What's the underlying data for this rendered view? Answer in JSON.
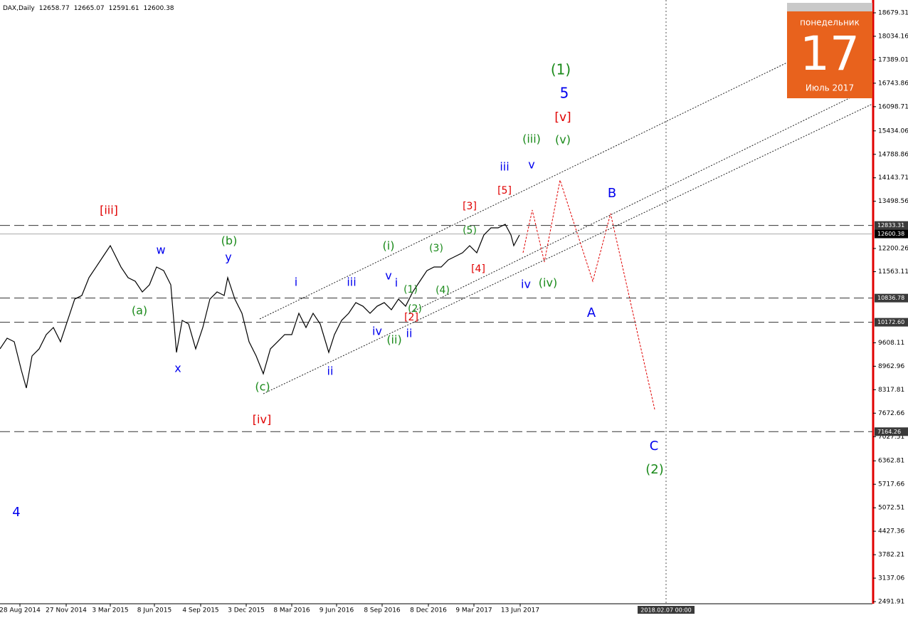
{
  "chart_data": {
    "type": "line",
    "title": "DAX,Daily",
    "ohlc": [
      12658.77,
      12665.07,
      12591.61,
      12600.38
    ],
    "color": "#000000",
    "x": [
      0,
      10,
      20,
      30,
      37,
      45,
      55,
      65,
      75,
      85,
      95,
      105,
      115,
      125,
      135,
      145,
      155,
      160,
      170,
      180,
      190,
      200,
      210,
      220,
      230,
      240,
      248,
      256,
      265,
      275,
      285,
      295,
      305,
      315,
      320,
      330,
      340,
      350,
      360,
      370,
      380,
      390,
      400,
      410,
      420,
      430,
      440,
      450,
      462,
      470,
      480,
      490,
      500,
      510,
      520,
      530,
      540,
      550,
      560,
      570,
      580,
      590,
      600,
      610,
      620,
      630,
      640,
      650,
      660,
      670,
      680,
      690,
      700,
      710,
      718,
      722,
      730
    ],
    "values": [
      9441,
      9734,
      9636,
      8853,
      8364,
      9245,
      9441,
      9832,
      10028,
      9636,
      10223,
      10810,
      10908,
      11398,
      11691,
      11985,
      12278,
      12083,
      11691,
      11398,
      11300,
      11006,
      11202,
      11691,
      11593,
      11202,
      9343,
      10223,
      10125,
      9441,
      10028,
      10810,
      11006,
      10908,
      11398,
      10810,
      10419,
      9636,
      9245,
      8756,
      9441,
      9636,
      9832,
      9832,
      10419,
      10028,
      10419,
      10125,
      9343,
      9832,
      10223,
      10419,
      10712,
      10614,
      10419,
      10614,
      10712,
      10517,
      10810,
      10614,
      11006,
      11300,
      11593,
      11691,
      11691,
      11887,
      11985,
      12083,
      12278,
      12083,
      12572,
      12768,
      12768,
      12866,
      12572,
      12278,
      12572
    ],
    "xlim": [
      0,
      1226
    ],
    "xticks": [
      {
        "value": 28,
        "label": "28 Aug 2014"
      },
      {
        "value": 93,
        "label": "27 Nov 2014"
      },
      {
        "value": 155,
        "label": "3 Mar 2015"
      },
      {
        "value": 217,
        "label": "8 Jun 2015"
      },
      {
        "value": 282,
        "label": "4 Sep 2015"
      },
      {
        "value": 346,
        "label": "3 Dec 2015"
      },
      {
        "value": 410,
        "label": "8 Mar 2016"
      },
      {
        "value": 473,
        "label": "9 Jun 2016"
      },
      {
        "value": 537,
        "label": "8 Sep 2016"
      },
      {
        "value": 602,
        "label": "8 Dec 2016"
      },
      {
        "value": 666,
        "label": "9 Mar 2017"
      },
      {
        "value": 731,
        "label": "13 Jun 2017"
      }
    ],
    "cursor_x": {
      "value": 936,
      "label": "2018.02.07 00:00"
    },
    "ylim": [
      2433.2,
      19031.6
    ],
    "yticks": [
      18679.31,
      18034.16,
      17389.01,
      16743.86,
      16098.71,
      15434.06,
      14788.86,
      14143.71,
      13498.56,
      12200.26,
      11563.11,
      9608.11,
      8962.96,
      8317.81,
      7672.66,
      7027.51,
      6362.81,
      5717.66,
      5072.51,
      4427.36,
      3782.21,
      3137.06,
      2491.91
    ],
    "levels": [
      12833.31,
      10836.78,
      {
        "value": 10172.6,
        "label": "10172.60"
      },
      7164.26
    ],
    "current": 12600.38,
    "annotations": [
      {
        "text": "(1)",
        "color": "#1a8a1a"
      },
      {
        "text": "5",
        "color": "#0000ee"
      },
      {
        "text": "[v]",
        "color": "#e00000"
      },
      {
        "text": "(iii)",
        "color": "#1a8a1a"
      },
      {
        "text": "(v)",
        "color": "#1a8a1a"
      },
      {
        "text": "iii",
        "color": "#0000ee"
      },
      {
        "text": "v",
        "color": "#0000ee"
      },
      {
        "text": "[5]",
        "color": "#e00000"
      },
      {
        "text": "[3]",
        "color": "#e00000"
      },
      {
        "text": "B",
        "color": "#0000ee"
      },
      {
        "text": "[iii]",
        "color": "#e00000"
      },
      {
        "text": "(b)",
        "color": "#1a8a1a"
      },
      {
        "text": "y",
        "color": "#0000ee"
      },
      {
        "text": "w",
        "color": "#0000ee"
      },
      {
        "text": "(i)",
        "color": "#1a8a1a"
      },
      {
        "text": "(3)",
        "color": "#1a8a1a"
      },
      {
        "text": "(5)",
        "color": "#1a8a1a"
      },
      {
        "text": "[4]",
        "color": "#e00000"
      },
      {
        "text": "v",
        "color": "#0000ee"
      },
      {
        "text": "iii",
        "color": "#0000ee"
      },
      {
        "text": "i",
        "color": "#0000ee"
      },
      {
        "text": "i",
        "color": "#0000ee"
      },
      {
        "text": "iv",
        "color": "#0000ee"
      },
      {
        "text": "(iv)",
        "color": "#1a8a1a"
      },
      {
        "text": "(1)",
        "color": "#1a8a1a"
      },
      {
        "text": "(4)",
        "color": "#1a8a1a"
      },
      {
        "text": "(a)",
        "color": "#1a8a1a"
      },
      {
        "text": "A",
        "color": "#0000ee"
      },
      {
        "text": "(2)",
        "color": "#1a8a1a"
      },
      {
        "text": "[2]",
        "color": "#e00000"
      },
      {
        "text": "iv",
        "color": "#0000ee"
      },
      {
        "text": "ii",
        "color": "#0000ee"
      },
      {
        "text": "(ii)",
        "color": "#1a8a1a"
      },
      {
        "text": "x",
        "color": "#0000ee"
      },
      {
        "text": "ii",
        "color": "#0000ee"
      },
      {
        "text": "(c)",
        "color": "#1a8a1a"
      },
      {
        "text": "[iv]",
        "color": "#e00000"
      },
      {
        "text": "C",
        "color": "#0000ee"
      },
      {
        "text": "(2)",
        "color": "#1a8a1a"
      },
      {
        "text": "4",
        "color": "#0000ee"
      }
    ]
  },
  "calendar": {
    "weekday": "понедельник",
    "day": "17",
    "month": "Июль 2017"
  }
}
